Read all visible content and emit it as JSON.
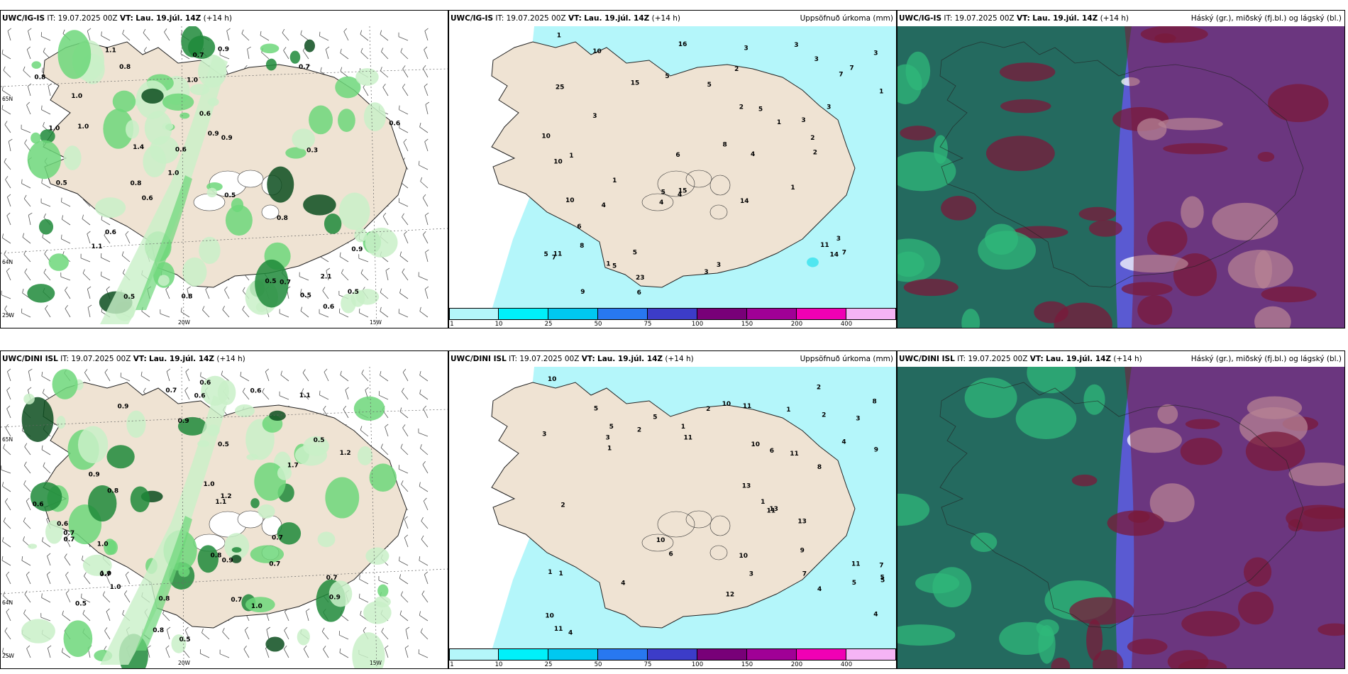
{
  "rows": [
    {
      "model": "UWC/IG-IS",
      "it_label": "IT:",
      "it_value": "19.07.2025 00Z",
      "vt_label": "VT:",
      "vt_value": "Lau. 19.júl. 14Z",
      "lead": "(+14 h)",
      "precip_title": "Uppsöfnuð úrkoma (mm)",
      "cloud_title": "Háský (gr.), miðský (fj.bl.) og lágský (bl.)",
      "left_values": [
        "1.1",
        "0.5",
        "0.5",
        "0.5",
        "0.8",
        "1.1",
        "0.8",
        "0.6",
        "0.6",
        "0.9",
        "1.0",
        "0.5",
        "0.7",
        "0.8",
        "0.9",
        "1.0",
        "0.6",
        "0.9",
        "2.1",
        "1.0",
        "1.0",
        "0.6",
        "0.8",
        "0.5",
        "0.5",
        "0.7",
        "0.7",
        "0.6",
        "0.3",
        "1.4",
        "0.6",
        "0.8",
        "0.9",
        "1.0"
      ],
      "mid_values": [
        "2",
        "3",
        "1",
        "5",
        "23",
        "25",
        "10",
        "6",
        "5",
        "15",
        "6",
        "8",
        "7",
        "5",
        "3",
        "2",
        "1",
        "10",
        "7",
        "7",
        "3",
        "4",
        "4",
        "3",
        "4",
        "7",
        "5",
        "16",
        "15",
        "6",
        "9",
        "10",
        "10",
        "11",
        "11",
        "14",
        "14",
        "3",
        "3",
        "8",
        "3",
        "2",
        "5",
        "1",
        "1",
        "1",
        "1",
        "3",
        "3",
        "4",
        "5",
        "3",
        "1",
        "2",
        "5"
      ],
      "coords": {
        "lat1": "65N",
        "lat2": "64N",
        "lon1": "20W",
        "lon2": "15W",
        "lon3": "25W"
      }
    },
    {
      "model": "UWC/DINI ISL",
      "it_label": "IT:",
      "it_value": "19.07.2025 00Z",
      "vt_label": "VT:",
      "vt_value": "Lau. 19.júl. 14Z",
      "lead": "(+14 h)",
      "precip_title": "Uppsöfnuð úrkoma (mm)",
      "cloud_title": "Háský (gr.), miðský (fj.bl.) og lágský (bl.)",
      "left_values": [
        "0.5",
        "1.1",
        "0.9",
        "0.5",
        "0.9",
        "0.8",
        "1.0",
        "1.0",
        "1.2",
        "1.7",
        "0.6",
        "0.6",
        "0.7",
        "1.1",
        "0.5",
        "0.7",
        "0.9",
        "0.6",
        "0.7",
        "0.8",
        "1.0",
        "0.6",
        "0.9",
        "1.2",
        "1.0",
        "0.8",
        "0.7",
        "0.6",
        "0.5",
        "0.7",
        "0.9",
        "1.0",
        "0.7",
        "0.8",
        "0.7",
        "0.7"
      ],
      "mid_values": [
        "3",
        "4",
        "2",
        "1",
        "1",
        "1",
        "2",
        "13",
        "11",
        "10",
        "13",
        "10",
        "11",
        "10",
        "1",
        "2",
        "1",
        "2",
        "4",
        "3",
        "4",
        "5",
        "9",
        "5",
        "6",
        "7",
        "8",
        "10",
        "12",
        "13",
        "11",
        "11",
        "10",
        "9",
        "11",
        "11",
        "10",
        "8",
        "6",
        "5",
        "7",
        "3",
        "5",
        "3",
        "1",
        "4",
        "5",
        "5",
        "4",
        "2"
      ],
      "coords": {
        "lat1": "65N",
        "lat2": "64N",
        "lon1": "20W",
        "lon2": "15W",
        "lon3": "25W"
      }
    }
  ],
  "scale_ticks": [
    "1",
    "10",
    "25",
    "50",
    "75",
    "100",
    "150",
    "200",
    "400"
  ],
  "scale_colors": [
    "#b4f6fa",
    "#00f0fa",
    "#00c8f0",
    "#2878f0",
    "#3c3cc8",
    "#780078",
    "#a00096",
    "#f000b4",
    "#f5b4f5"
  ],
  "colors": {
    "land": "#efe3d3",
    "sea": "#ffffff",
    "precip_light": "#b4f6fa",
    "precip_mid": "#50e6f0",
    "green1": "#c9f0c8",
    "green2": "#6dd77a",
    "green3": "#1f8a3a",
    "green4": "#0c4d1e",
    "cloud_high": "#1e6b52",
    "cloud_mid": "#5a5ad2",
    "cloud_low": "#7a1a3a"
  }
}
